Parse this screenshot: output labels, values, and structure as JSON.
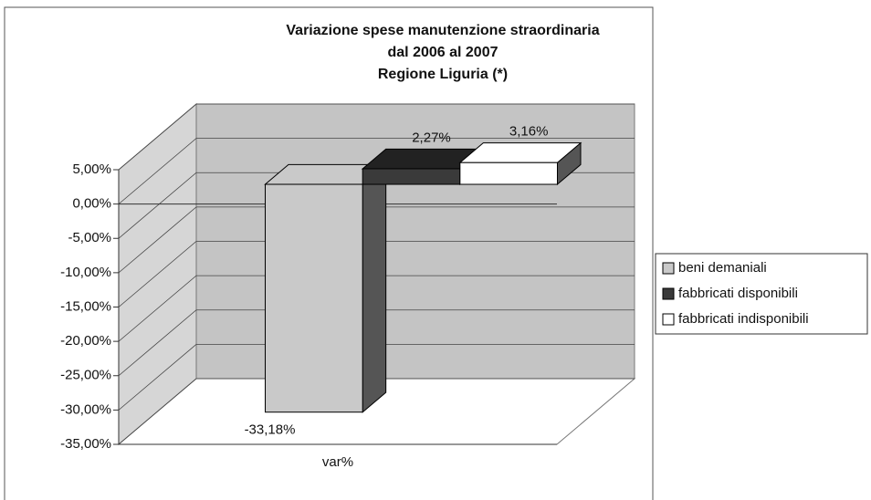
{
  "chart_data": {
    "type": "bar3d",
    "title": [
      "Variazione spese manutenzione straordinaria",
      "dal 2006 al 2007",
      "Regione Liguria (*)"
    ],
    "categories": [
      "var%"
    ],
    "series": [
      {
        "name": "beni demaniali",
        "color": "#c9c9c9",
        "values": [
          -33.18
        ],
        "value_labels": [
          "-33,18%"
        ]
      },
      {
        "name": "fabbricati disponibili",
        "color": "#3a3a3a",
        "values": [
          2.27
        ],
        "value_labels": [
          "2,27%"
        ]
      },
      {
        "name": "fabbricati indisponibili",
        "color": "#ffffff",
        "values": [
          3.16
        ],
        "value_labels": [
          "3,16%"
        ]
      }
    ],
    "ylim": [
      -35,
      5
    ],
    "yticks": [
      {
        "value": -35,
        "label": "-35,00%"
      },
      {
        "value": -30,
        "label": "-30,00%"
      },
      {
        "value": -25,
        "label": "-25,00%"
      },
      {
        "value": -20,
        "label": "-20,00%"
      },
      {
        "value": -15,
        "label": "-15,00%"
      },
      {
        "value": -10,
        "label": "-10,00%"
      },
      {
        "value": -5,
        "label": "-5,00%"
      },
      {
        "value": 0,
        "label": "0,00%"
      },
      {
        "value": 5,
        "label": "5,00%"
      }
    ],
    "grid": true,
    "legend": "right"
  }
}
